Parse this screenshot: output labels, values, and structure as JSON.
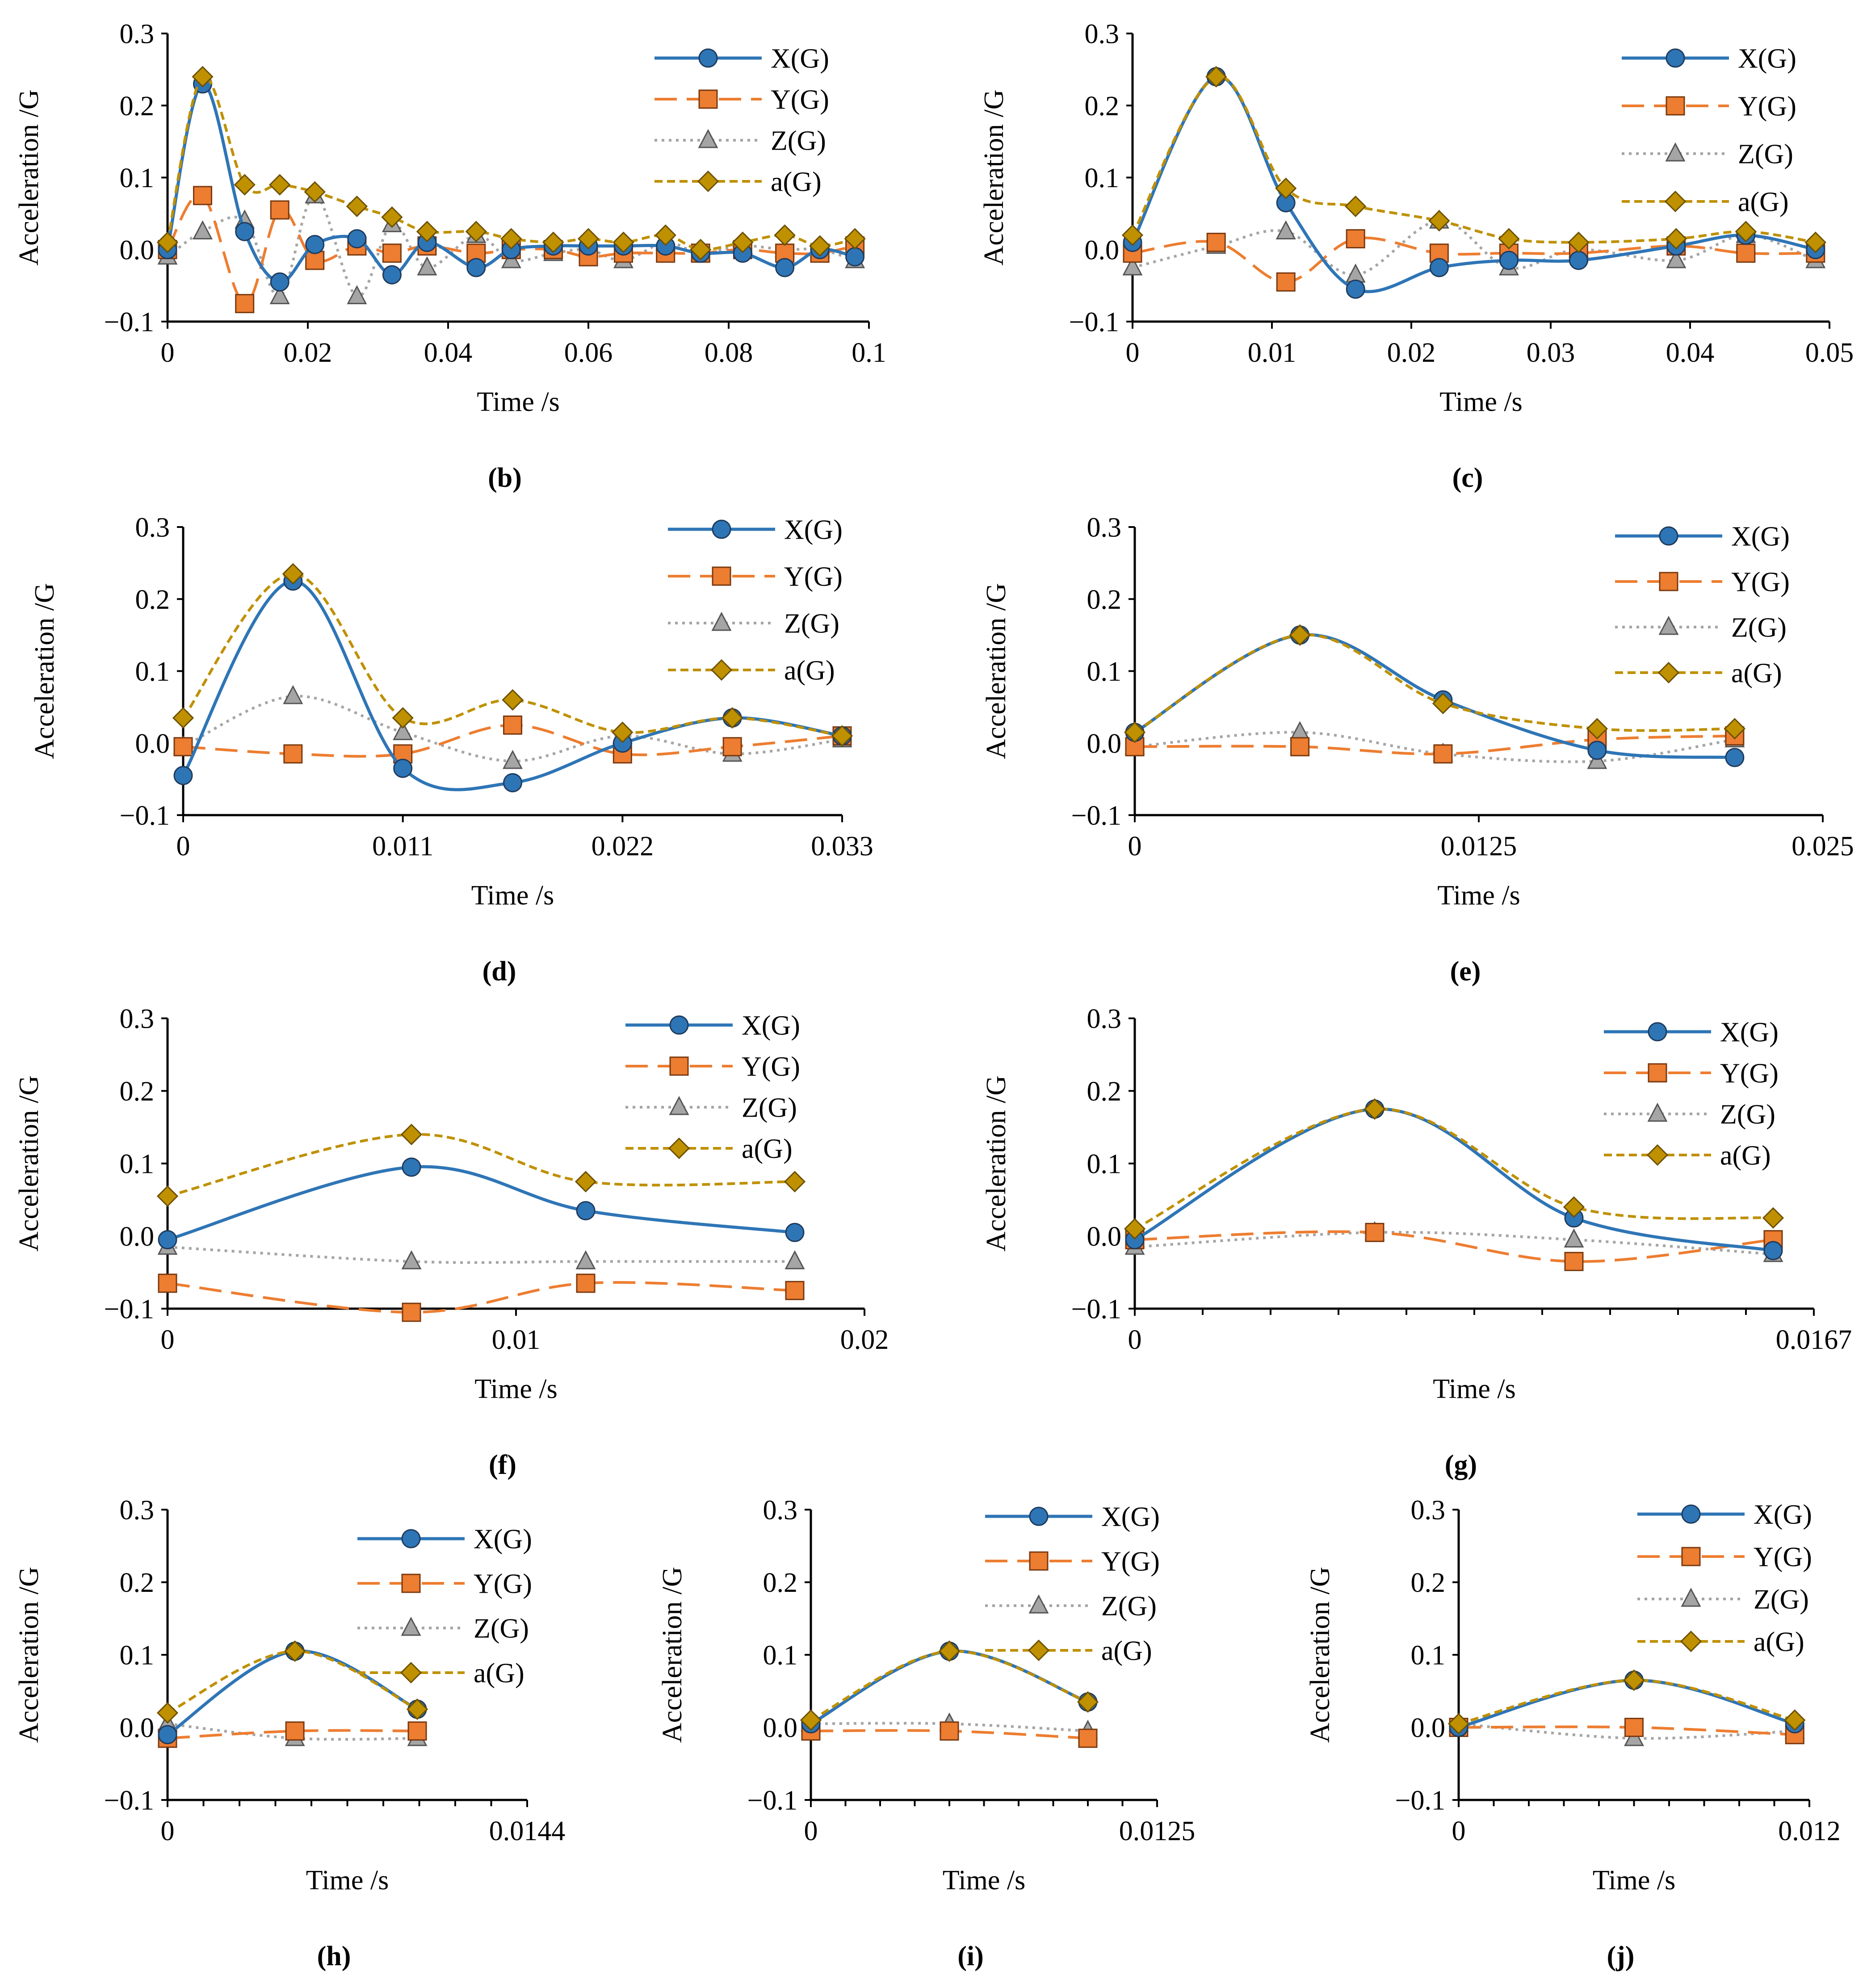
{
  "figure": {
    "background": "#ffffff"
  },
  "series_style": [
    {
      "key": "X",
      "name": "X(G)",
      "color": "#2E75B6",
      "marker": "circle",
      "dash": "",
      "stroke_width": 7
    },
    {
      "key": "Y",
      "name": "Y(G)",
      "color": "#ED7D31",
      "marker": "square",
      "dash": "50 22",
      "stroke_width": 6
    },
    {
      "key": "Z",
      "name": "Z(G)",
      "color": "#A5A5A5",
      "marker": "triangle",
      "dash": "6 10",
      "stroke_width": 6
    },
    {
      "key": "a",
      "name": "a(G)",
      "color": "#BF9000",
      "marker": "diamond",
      "dash": "18 10",
      "stroke_width": 6
    }
  ],
  "chart_data": [
    {
      "panel": "b",
      "caption": "(b)",
      "type": "line",
      "xlabel": "Time /s",
      "ylabel": "Acceleration /G",
      "xlim": [
        0,
        0.1
      ],
      "ylim": [
        -0.1,
        0.3
      ],
      "xticks": [
        "0",
        "0.02",
        "0.04",
        "0.06",
        "0.08",
        "0.1"
      ],
      "yticks": [
        "−0.1",
        "0.0",
        "0.1",
        "0.2",
        "0.3"
      ],
      "legend": [
        "X(G)",
        "Y(G)",
        "Z(G)",
        "a(G)"
      ],
      "series": [
        {
          "name": "X(G)",
          "x": [
            0,
            0.005,
            0.011,
            0.016,
            0.021,
            0.027,
            0.032,
            0.037,
            0.044,
            0.049,
            0.055,
            0.06,
            0.065,
            0.071,
            0.076,
            0.082,
            0.088,
            0.093,
            0.098
          ],
          "y": [
            0.0,
            0.23,
            0.025,
            -0.045,
            0.007,
            0.015,
            -0.035,
            0.01,
            -0.025,
            0.0,
            0.005,
            0.005,
            0.005,
            0.005,
            -0.005,
            -0.005,
            -0.025,
            0.0,
            -0.01
          ]
        },
        {
          "name": "Y(G)",
          "x": [
            0,
            0.005,
            0.011,
            0.016,
            0.021,
            0.027,
            0.032,
            0.037,
            0.044,
            0.049,
            0.055,
            0.06,
            0.065,
            0.071,
            0.076,
            0.082,
            0.088,
            0.093,
            0.098
          ],
          "y": [
            0.0,
            0.075,
            -0.075,
            0.055,
            -0.015,
            0.005,
            -0.005,
            0.005,
            -0.005,
            0.0,
            0.0,
            -0.01,
            -0.005,
            -0.005,
            -0.005,
            0.0,
            -0.005,
            -0.005,
            0.005
          ]
        },
        {
          "name": "Z(G)",
          "x": [
            0,
            0.005,
            0.011,
            0.016,
            0.021,
            0.027,
            0.032,
            0.037,
            0.044,
            0.049,
            0.055,
            0.06,
            0.065,
            0.071,
            0.076,
            0.082,
            0.088,
            0.093,
            0.098
          ],
          "y": [
            -0.01,
            0.025,
            0.04,
            -0.065,
            0.075,
            -0.065,
            0.035,
            -0.025,
            0.02,
            -0.015,
            -0.005,
            0.0,
            -0.015,
            0.01,
            -0.005,
            0.005,
            0.0,
            0.0,
            -0.015
          ]
        },
        {
          "name": "a(G)",
          "x": [
            0,
            0.005,
            0.011,
            0.016,
            0.021,
            0.027,
            0.032,
            0.037,
            0.044,
            0.049,
            0.055,
            0.06,
            0.065,
            0.071,
            0.076,
            0.082,
            0.088,
            0.093,
            0.098
          ],
          "y": [
            0.01,
            0.24,
            0.09,
            0.09,
            0.08,
            0.06,
            0.045,
            0.025,
            0.025,
            0.015,
            0.01,
            0.015,
            0.01,
            0.02,
            0.0,
            0.01,
            0.02,
            0.005,
            0.015
          ]
        }
      ]
    },
    {
      "panel": "c",
      "caption": "(c)",
      "type": "line",
      "xlabel": "Time /s",
      "ylabel": "Acceleration /G",
      "xlim": [
        0,
        0.05
      ],
      "ylim": [
        -0.1,
        0.3
      ],
      "xticks": [
        "0",
        "0.01",
        "0.02",
        "0.03",
        "0.04",
        "0.05"
      ],
      "yticks": [
        "−0.1",
        "0.0",
        "0.1",
        "0.2",
        "0.3"
      ],
      "legend": [
        "X(G)",
        "Y(G)",
        "Z(G)",
        "a(G)"
      ],
      "series": [
        {
          "name": "X(G)",
          "x": [
            0,
            0.006,
            0.011,
            0.016,
            0.022,
            0.027,
            0.032,
            0.039,
            0.044,
            0.049
          ],
          "y": [
            0.01,
            0.24,
            0.065,
            -0.055,
            -0.025,
            -0.015,
            -0.015,
            0.005,
            0.02,
            0.0
          ]
        },
        {
          "name": "Y(G)",
          "x": [
            0,
            0.006,
            0.011,
            0.016,
            0.022,
            0.027,
            0.032,
            0.039,
            0.044,
            0.049
          ],
          "y": [
            -0.005,
            0.01,
            -0.045,
            0.015,
            -0.005,
            -0.005,
            -0.005,
            0.005,
            -0.005,
            -0.005
          ]
        },
        {
          "name": "Z(G)",
          "x": [
            0,
            0.006,
            0.011,
            0.016,
            0.022,
            0.027,
            0.032,
            0.039,
            0.044,
            0.049
          ],
          "y": [
            -0.025,
            0.005,
            0.025,
            -0.035,
            0.04,
            -0.025,
            0.0,
            -0.015,
            0.02,
            -0.015
          ]
        },
        {
          "name": "a(G)",
          "x": [
            0,
            0.006,
            0.011,
            0.016,
            0.022,
            0.027,
            0.032,
            0.039,
            0.044,
            0.049
          ],
          "y": [
            0.02,
            0.24,
            0.085,
            0.06,
            0.04,
            0.015,
            0.01,
            0.015,
            0.025,
            0.01
          ]
        }
      ]
    },
    {
      "panel": "d",
      "caption": "(d)",
      "type": "line",
      "xlabel": "Time /s",
      "ylabel": "Acceleration /G",
      "xlim": [
        0,
        0.033
      ],
      "ylim": [
        -0.1,
        0.3
      ],
      "xticks": [
        "0",
        "0.011",
        "0.022",
        "0.033"
      ],
      "yticks": [
        "−0.1",
        "0.0",
        "0.1",
        "0.2",
        "0.3"
      ],
      "legend": [
        "X(G)",
        "Y(G)",
        "Z(G)",
        "a(G)"
      ],
      "series": [
        {
          "name": "X(G)",
          "x": [
            0,
            0.0055,
            0.011,
            0.0165,
            0.022,
            0.0275,
            0.033
          ],
          "y": [
            -0.045,
            0.225,
            -0.035,
            -0.055,
            0.0,
            0.035,
            0.01
          ]
        },
        {
          "name": "Y(G)",
          "x": [
            0,
            0.0055,
            0.011,
            0.0165,
            0.022,
            0.0275,
            0.033
          ],
          "y": [
            -0.005,
            -0.015,
            -0.015,
            0.025,
            -0.015,
            -0.005,
            0.01
          ]
        },
        {
          "name": "Z(G)",
          "x": [
            0,
            0.0055,
            0.011,
            0.0165,
            0.022,
            0.0275,
            0.033
          ],
          "y": [
            -0.005,
            0.065,
            0.015,
            -0.025,
            0.01,
            -0.015,
            0.005
          ]
        },
        {
          "name": "a(G)",
          "x": [
            0,
            0.0055,
            0.011,
            0.0165,
            0.022,
            0.0275,
            0.033
          ],
          "y": [
            0.035,
            0.235,
            0.035,
            0.06,
            0.015,
            0.035,
            0.01
          ]
        }
      ]
    },
    {
      "panel": "e",
      "caption": "(e)",
      "type": "line",
      "xlabel": "Time /s",
      "ylabel": "Acceleration /G",
      "xlim": [
        0,
        0.025
      ],
      "ylim": [
        -0.1,
        0.3
      ],
      "xticks": [
        "0",
        "0.0125",
        "0.025"
      ],
      "yticks": [
        "−0.1",
        "0.0",
        "0.1",
        "0.2",
        "0.3"
      ],
      "legend": [
        "X(G)",
        "Y(G)",
        "Z(G)",
        "a(G)"
      ],
      "series": [
        {
          "name": "X(G)",
          "x": [
            0,
            0.006,
            0.0112,
            0.0168,
            0.0218
          ],
          "y": [
            0.015,
            0.15,
            0.06,
            -0.01,
            -0.02
          ]
        },
        {
          "name": "Y(G)",
          "x": [
            0,
            0.006,
            0.0112,
            0.0168,
            0.0218
          ],
          "y": [
            -0.005,
            -0.005,
            -0.015,
            0.005,
            0.01
          ]
        },
        {
          "name": "Z(G)",
          "x": [
            0,
            0.006,
            0.0112,
            0.0168,
            0.0218
          ],
          "y": [
            -0.005,
            0.015,
            -0.015,
            -0.025,
            0.005
          ]
        },
        {
          "name": "a(G)",
          "x": [
            0,
            0.006,
            0.0112,
            0.0168,
            0.0218
          ],
          "y": [
            0.015,
            0.15,
            0.055,
            0.02,
            0.02
          ]
        }
      ]
    },
    {
      "panel": "f",
      "caption": "(f)",
      "type": "line",
      "xlabel": "Time /s",
      "ylabel": "Acceleration /G",
      "xlim": [
        0,
        0.02
      ],
      "ylim": [
        -0.1,
        0.3
      ],
      "xticks": [
        "0",
        "0.01",
        "0.02"
      ],
      "yticks": [
        "−0.1",
        "0.0",
        "0.1",
        "0.2",
        "0.3"
      ],
      "legend": [
        "X(G)",
        "Y(G)",
        "Z(G)",
        "a(G)"
      ],
      "series": [
        {
          "name": "X(G)",
          "x": [
            0,
            0.007,
            0.012,
            0.018
          ],
          "y": [
            -0.005,
            0.095,
            0.035,
            0.005
          ]
        },
        {
          "name": "Y(G)",
          "x": [
            0,
            0.007,
            0.012,
            0.018
          ],
          "y": [
            -0.065,
            -0.105,
            -0.065,
            -0.075
          ]
        },
        {
          "name": "Z(G)",
          "x": [
            0,
            0.007,
            0.012,
            0.018
          ],
          "y": [
            -0.015,
            -0.035,
            -0.035,
            -0.035
          ]
        },
        {
          "name": "a(G)",
          "x": [
            0,
            0.007,
            0.012,
            0.018
          ],
          "y": [
            0.055,
            0.14,
            0.075,
            0.075
          ]
        }
      ]
    },
    {
      "panel": "g",
      "caption": "(g)",
      "type": "line",
      "xlabel": "Time /s",
      "ylabel": "Acceleration /G",
      "xlim": [
        0,
        0.0167
      ],
      "ylim": [
        -0.1,
        0.3
      ],
      "xticks": [
        "0",
        "0.0167"
      ],
      "yticks": [
        "−0.1",
        "0.0",
        "0.1",
        "0.2",
        "0.3"
      ],
      "legend": [
        "X(G)",
        "Y(G)",
        "Z(G)",
        "a(G)"
      ],
      "series": [
        {
          "name": "X(G)",
          "x": [
            0,
            0.0059,
            0.0108,
            0.0157
          ],
          "y": [
            -0.005,
            0.175,
            0.025,
            -0.02
          ]
        },
        {
          "name": "Y(G)",
          "x": [
            0,
            0.0059,
            0.0108,
            0.0157
          ],
          "y": [
            -0.005,
            0.005,
            -0.035,
            -0.005
          ]
        },
        {
          "name": "Z(G)",
          "x": [
            0,
            0.0059,
            0.0108,
            0.0157
          ],
          "y": [
            -0.015,
            0.005,
            -0.005,
            -0.025
          ]
        },
        {
          "name": "a(G)",
          "x": [
            0,
            0.0059,
            0.0108,
            0.0157
          ],
          "y": [
            0.01,
            0.175,
            0.04,
            0.025
          ]
        }
      ]
    },
    {
      "panel": "h",
      "caption": "(h)",
      "type": "line",
      "xlabel": "Time /s",
      "ylabel": "Acceleration /G",
      "xlim": [
        0,
        0.0144
      ],
      "ylim": [
        -0.1,
        0.3
      ],
      "xticks": [
        "0",
        "0.0144"
      ],
      "yticks": [
        "−0.1",
        "0.0",
        "0.1",
        "0.2",
        "0.3"
      ],
      "legend": [
        "X(G)",
        "Y(G)",
        "Z(G)",
        "a(G)"
      ],
      "series": [
        {
          "name": "X(G)",
          "x": [
            0,
            0.0051,
            0.01
          ],
          "y": [
            -0.01,
            0.105,
            0.025
          ]
        },
        {
          "name": "Y(G)",
          "x": [
            0,
            0.0051,
            0.01
          ],
          "y": [
            -0.015,
            -0.005,
            -0.005
          ]
        },
        {
          "name": "Z(G)",
          "x": [
            0,
            0.0051,
            0.01
          ],
          "y": [
            0.005,
            -0.015,
            -0.015
          ]
        },
        {
          "name": "a(G)",
          "x": [
            0,
            0.0051,
            0.01
          ],
          "y": [
            0.02,
            0.105,
            0.025
          ]
        }
      ]
    },
    {
      "panel": "i",
      "caption": "(i)",
      "type": "line",
      "xlabel": "Time /s",
      "ylabel": "Acceleration /G",
      "xlim": [
        0,
        0.0125
      ],
      "ylim": [
        -0.1,
        0.3
      ],
      "xticks": [
        "0",
        "0.0125"
      ],
      "yticks": [
        "−0.1",
        "0.0",
        "0.1",
        "0.2",
        "0.3"
      ],
      "legend": [
        "X(G)",
        "Y(G)",
        "Z(G)",
        "a(G)"
      ],
      "series": [
        {
          "name": "X(G)",
          "x": [
            0,
            0.005,
            0.01
          ],
          "y": [
            0.005,
            0.105,
            0.035
          ]
        },
        {
          "name": "Y(G)",
          "x": [
            0,
            0.005,
            0.01
          ],
          "y": [
            -0.005,
            -0.005,
            -0.015
          ]
        },
        {
          "name": "Z(G)",
          "x": [
            0,
            0.005,
            0.01
          ],
          "y": [
            0.005,
            0.005,
            -0.005
          ]
        },
        {
          "name": "a(G)",
          "x": [
            0,
            0.005,
            0.01
          ],
          "y": [
            0.01,
            0.105,
            0.035
          ]
        }
      ]
    },
    {
      "panel": "j",
      "caption": "(j)",
      "type": "line",
      "xlabel": "Time /s",
      "ylabel": "Acceleration /G",
      "xlim": [
        0,
        0.012
      ],
      "ylim": [
        -0.1,
        0.3
      ],
      "xticks": [
        "0",
        "0.012"
      ],
      "yticks": [
        "−0.1",
        "0.0",
        "0.1",
        "0.2",
        "0.3"
      ],
      "legend": [
        "X(G)",
        "Y(G)",
        "Z(G)",
        "a(G)"
      ],
      "series": [
        {
          "name": "X(G)",
          "x": [
            0,
            0.006,
            0.0115
          ],
          "y": [
            0.0,
            0.065,
            0.005
          ]
        },
        {
          "name": "Y(G)",
          "x": [
            0,
            0.006,
            0.0115
          ],
          "y": [
            0.0,
            0.0,
            -0.01
          ]
        },
        {
          "name": "Z(G)",
          "x": [
            0,
            0.006,
            0.0115
          ],
          "y": [
            0.005,
            -0.015,
            -0.005
          ]
        },
        {
          "name": "a(G)",
          "x": [
            0,
            0.006,
            0.0115
          ],
          "y": [
            0.005,
            0.065,
            0.01
          ]
        }
      ]
    }
  ]
}
